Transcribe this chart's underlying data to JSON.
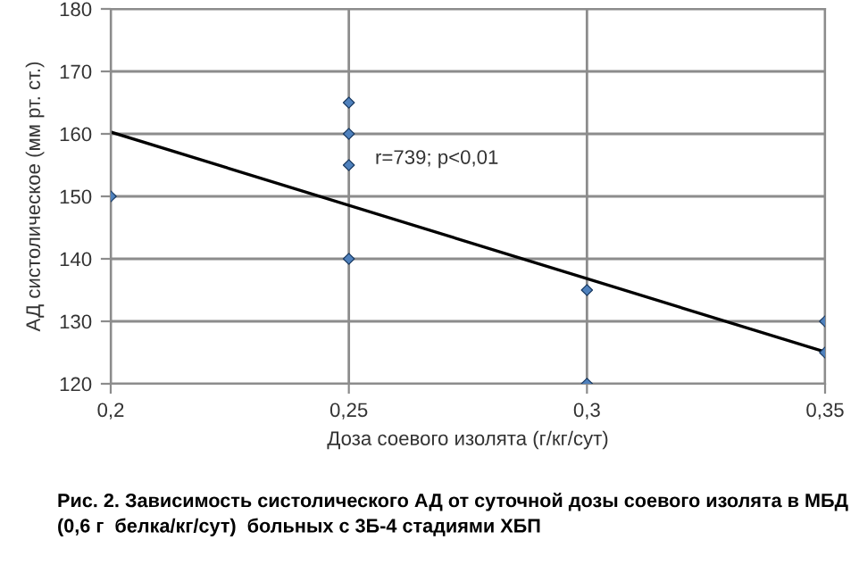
{
  "chart_data": {
    "type": "scatter",
    "xlabel": "Доза соевого изолята (г/кг/сут)",
    "ylabel": "АД систолическое (мм рт. ст.)",
    "annotations": [
      "r=739; p<0,01",
      "Рис. 2. Зависимость систолического АД от суточной дозы соевого изолята в МБД (0,6 г  белка/кг/сут)  больных с 3Б-4 стадиями ХБП"
    ],
    "series": [
      {
        "color": "#4f81bd",
        "marker": "diamond",
        "x": [
          0.2,
          0.25,
          0.25,
          0.25,
          0.25,
          0.3,
          0.3,
          0.35,
          0.35
        ],
        "values": [
          150,
          165,
          160,
          155,
          140,
          135,
          120,
          130,
          125
        ]
      },
      {
        "type": "line",
        "color": "#000000",
        "marker": "none",
        "x": [
          0.2,
          0.35
        ],
        "values": [
          160.3,
          125.1
        ]
      }
    ],
    "xlim": [
      0.2,
      0.35
    ],
    "ylim": [
      120,
      180
    ],
    "xticks": [
      {
        "value": 0.2,
        "label": "0,2"
      },
      {
        "value": 0.25,
        "label": "0,25"
      },
      {
        "value": 0.3,
        "label": "0,3"
      },
      {
        "value": 0.35,
        "label": "0,35"
      }
    ],
    "yticks": [
      120,
      130,
      140,
      150,
      160,
      170,
      180
    ],
    "grid": true,
    "legend": false
  }
}
